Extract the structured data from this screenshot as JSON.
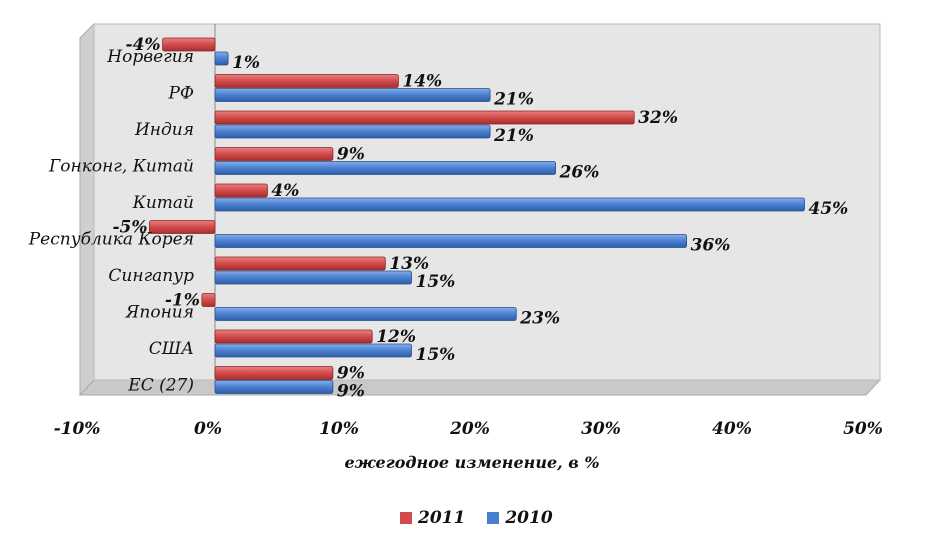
{
  "chart_data": {
    "type": "bar",
    "orientation": "horizontal",
    "categories": [
      "Норвегия",
      "РФ",
      "Индия",
      "Гонконг, Китай",
      "Китай",
      "Республика Корея",
      "Сингапур",
      "Япония",
      "США",
      "ЕС (27)"
    ],
    "series": [
      {
        "name": "2011",
        "color": "#d24b4b",
        "values": [
          -4,
          14,
          32,
          9,
          4,
          -5,
          13,
          -1,
          12,
          9
        ],
        "labels": [
          "-4%",
          "14%",
          "32%",
          "9%",
          "4%",
          "-5%",
          "13%",
          "-1%",
          "12%",
          "9%"
        ]
      },
      {
        "name": "2010",
        "color": "#4a7fd0",
        "values": [
          1,
          21,
          21,
          26,
          45,
          36,
          15,
          23,
          15,
          9
        ],
        "labels": [
          "1%",
          "21%",
          "21%",
          "26%",
          "45%",
          "36%",
          "15%",
          "23%",
          "15%",
          "9%"
        ]
      }
    ],
    "xlabel": "ежегодное изменение, в %",
    "xlim": [
      -10,
      50
    ],
    "xticks": [
      -10,
      0,
      10,
      20,
      30,
      40,
      50
    ],
    "xtick_labels": [
      "-10%",
      "0%",
      "10%",
      "20%",
      "30%",
      "40%",
      "50%"
    ],
    "grid": false,
    "legend_position": "bottom"
  }
}
